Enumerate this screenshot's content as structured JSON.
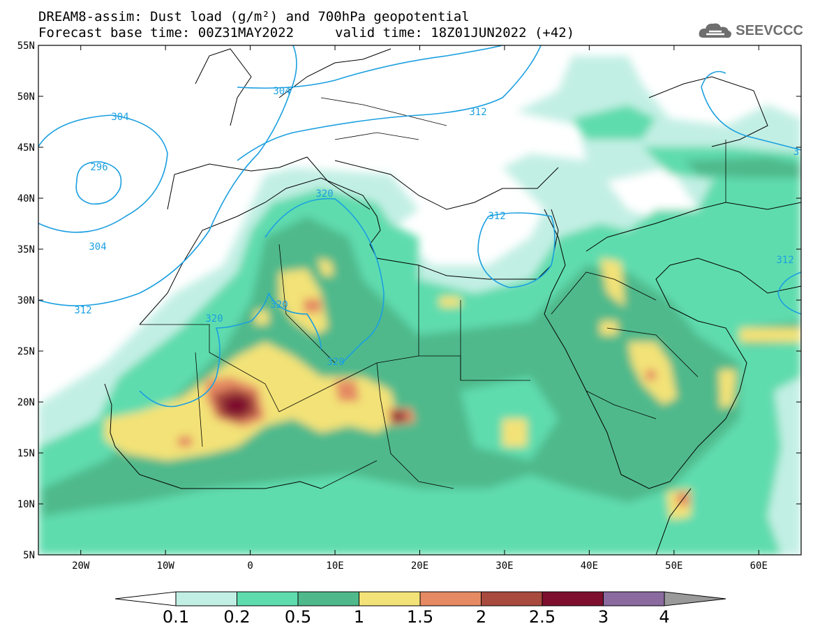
{
  "title": {
    "line1": "DREAM8-assim: Dust load (g/m²) and 700hPa geopotential",
    "line2a": "Forecast base time: 00Z31MAY2022",
    "line2b": "valid time: 18Z01JUN2022 (+42)"
  },
  "logo": {
    "text": "SEEVCCC",
    "icon": "cloud-logo-icon"
  },
  "axes": {
    "lat_labels": [
      "55N",
      "50N",
      "45N",
      "40N",
      "35N",
      "30N",
      "25N",
      "20N",
      "15N",
      "10N",
      "5N"
    ],
    "lon_labels": [
      "20W",
      "10W",
      "0",
      "10E",
      "20E",
      "30E",
      "40E",
      "50E",
      "60E"
    ],
    "lat_range": [
      5,
      55
    ],
    "lon_range": [
      -25,
      65
    ]
  },
  "contours": {
    "labels": [
      "304",
      "304",
      "304",
      "296",
      "312",
      "312",
      "320",
      "320",
      "320",
      "320",
      "312",
      "312",
      "3"
    ]
  },
  "colorbar": {
    "levels": [
      "0.1",
      "0.2",
      "0.5",
      "1",
      "1.5",
      "2",
      "2.5",
      "3",
      "4"
    ],
    "colors": [
      "#c2efe4",
      "#5fdcae",
      "#4fb98b",
      "#f3e277",
      "#e58a63",
      "#a84a3e",
      "#7e0f2f",
      "#8a6a9f"
    ],
    "under_color": "#ffffff",
    "over_color": "#9a9a9a"
  }
}
